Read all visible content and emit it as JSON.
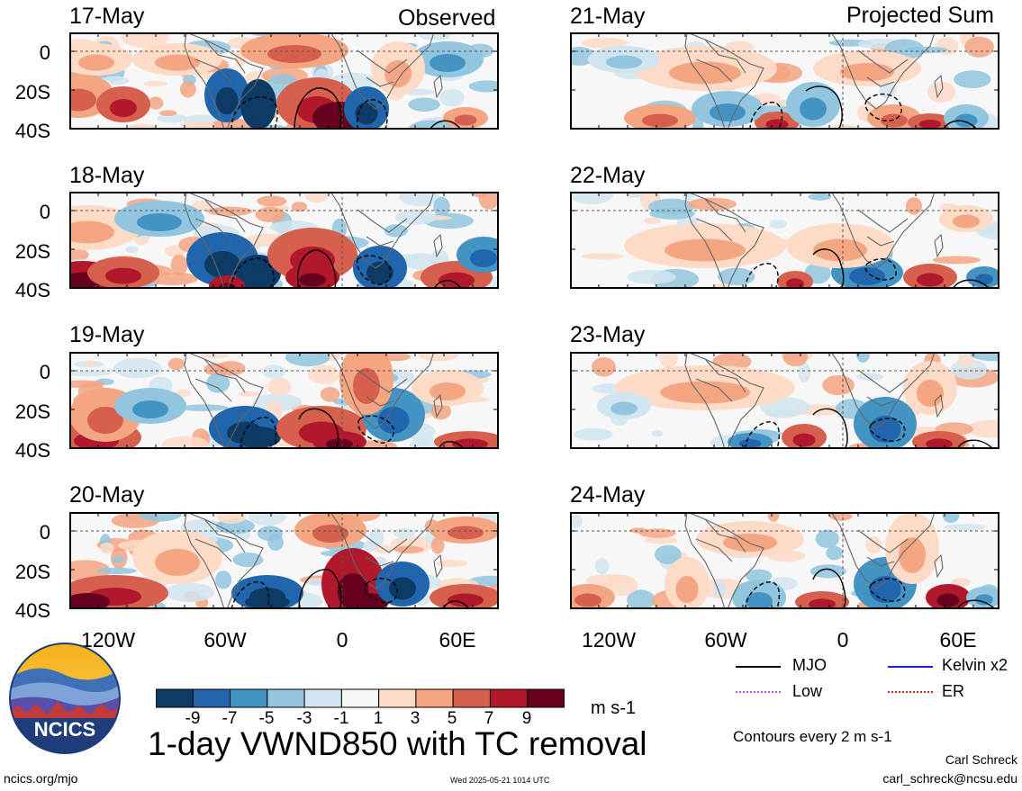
{
  "columns": [
    {
      "title": "Observed",
      "dates": [
        "17-May",
        "18-May",
        "19-May",
        "20-May"
      ]
    },
    {
      "title": "Projected Sum",
      "dates": [
        "21-May",
        "22-May",
        "23-May",
        "24-May"
      ]
    }
  ],
  "y_ticks": [
    "0",
    "20S",
    "40S"
  ],
  "x_ticks": [
    "120W",
    "60W",
    "0",
    "60E"
  ],
  "colorbar": {
    "labels": [
      "-9",
      "-7",
      "-5",
      "-3",
      "-1",
      "1",
      "3",
      "5",
      "7",
      "9"
    ],
    "colors": [
      "#0d3b66",
      "#2166ac",
      "#4393c3",
      "#92c5de",
      "#d1e5f0",
      "#f7f7f7",
      "#fddbc7",
      "#f4a582",
      "#d6604d",
      "#b2182b",
      "#67001f"
    ],
    "units": "m s-1"
  },
  "legend": {
    "items": [
      {
        "label": "MJO",
        "color": "#000000"
      },
      {
        "label": "Kelvin x2",
        "color": "#1f1fd0"
      },
      {
        "label": "Low",
        "color": "#b057e0"
      },
      {
        "label": "ER",
        "color": "#d02020"
      }
    ],
    "contour_note": "Contours every 2 m s-1"
  },
  "main_title": "1-day VWND850 with TC removal",
  "logo_text": "NCICS",
  "footer": {
    "site": "ncics.org/mjo",
    "timestamp": "Wed 2025-05-21 1014 UTC",
    "author": "Carl Schreck",
    "email": "carl_schreck@ncsu.edu"
  },
  "chart_data": {
    "type": "heatmap",
    "variable": "1-day VWND850 with TC removal",
    "units": "m s-1",
    "x_ticks": [
      "120W",
      "60W",
      "0",
      "60E"
    ],
    "y_ticks": [
      "0",
      "20S",
      "40S"
    ],
    "color_levels": [
      -9,
      -7,
      -5,
      -3,
      -1,
      1,
      3,
      5,
      7,
      9
    ],
    "panels": [
      {
        "date": "17-May",
        "group": "Observed"
      },
      {
        "date": "18-May",
        "group": "Observed"
      },
      {
        "date": "19-May",
        "group": "Observed"
      },
      {
        "date": "20-May",
        "group": "Observed"
      },
      {
        "date": "21-May",
        "group": "Projected Sum"
      },
      {
        "date": "22-May",
        "group": "Projected Sum"
      },
      {
        "date": "23-May",
        "group": "Projected Sum"
      },
      {
        "date": "24-May",
        "group": "Projected Sum"
      }
    ],
    "contour_interval": 2,
    "legend": [
      "MJO",
      "Kelvin x2",
      "Low",
      "ER"
    ]
  }
}
